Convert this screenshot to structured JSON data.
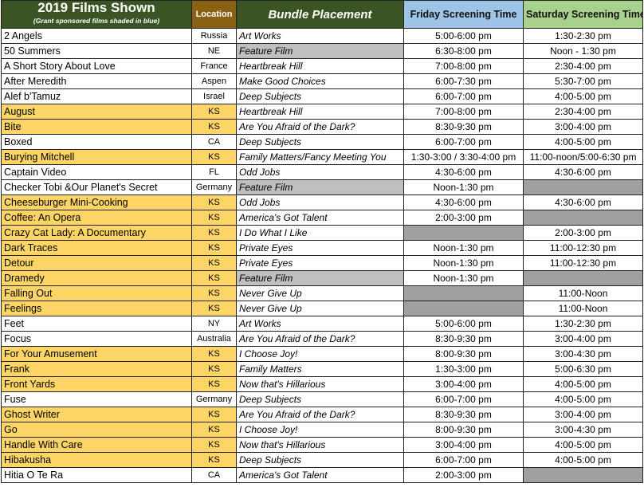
{
  "header": {
    "title": "2019 Films Shown",
    "subtitle": "(Grant sponsored films shaded in blue)",
    "location": "Location",
    "bundle": "Bundle Placement",
    "friday": "Friday Screening Time",
    "saturday": "Saturday Screening Time"
  },
  "colors": {
    "header_green": "#3b5424",
    "location_brown": "#8a6012",
    "friday_blue": "#9dc3e6",
    "saturday_green": "#a9d18e",
    "highlight_yellow": "#fdd567",
    "gray": "#a0a0a0"
  },
  "rows": [
    {
      "title": "2 Angels",
      "location": "Russia",
      "bundle": "Art Works",
      "friday": "5:00-6:00 pm",
      "saturday": "1:30-2:30 pm"
    },
    {
      "title": "50 Summers",
      "location": "NE",
      "bundle": "Feature Film",
      "friday": "6:30-8:00 pm",
      "saturday": "Noon - 1:30 pm",
      "bundle_gray": true
    },
    {
      "title": "A Short Story About Love",
      "location": "France",
      "bundle": "Heartbreak Hill",
      "friday": "7:00-8:00 pm",
      "saturday": "2:30-4:00 pm"
    },
    {
      "title": "After Meredith",
      "location": "Aspen",
      "bundle": "Make Good Choices",
      "friday": "6:00-7:30 pm",
      "saturday": "5:30-7:00 pm"
    },
    {
      "title": "Alef b'Tamuz",
      "location": "Israel",
      "bundle": "Deep Subjects",
      "friday": "6:00-7:00 pm",
      "saturday": "4:00-5:00 pm"
    },
    {
      "title": "August",
      "location": "KS",
      "bundle": "Heartbreak Hill",
      "friday": "7:00-8:00 pm",
      "saturday": "2:30-4:00 pm",
      "highlight": true
    },
    {
      "title": "Bite",
      "location": "KS",
      "bundle": "Are You Afraid of the Dark?",
      "friday": "8:30-9:30 pm",
      "saturday": "3:00-4:00 pm",
      "highlight": true
    },
    {
      "title": "Boxed",
      "location": "CA",
      "bundle": "Deep Subjects",
      "friday": "6:00-7:00 pm",
      "saturday": "4:00-5:00 pm"
    },
    {
      "title": "Burying Mitchell",
      "location": "KS",
      "bundle": "Family Matters/Fancy Meeting You",
      "friday": "1:30-3:00 / 3:30-4:00 pm",
      "saturday": "11:00-noon/5:00-6:30 pm",
      "highlight": true
    },
    {
      "title": "Captain Video",
      "location": "FL",
      "bundle": "Odd Jobs",
      "friday": "4:30-6:00 pm",
      "saturday": "4:30-6:00 pm"
    },
    {
      "title": "Checker Tobi &Our Planet's Secret",
      "location": "Germany",
      "bundle": "Feature Film",
      "friday": "Noon-1:30 pm",
      "saturday": "",
      "bundle_gray": true,
      "sat_gray": true
    },
    {
      "title": "Cheeseburger Mini-Cooking",
      "location": "KS",
      "bundle": "Odd Jobs",
      "friday": "4:30-6:00 pm",
      "saturday": "4:30-6:00 pm",
      "highlight": true
    },
    {
      "title": "Coffee: An Opera",
      "location": "KS",
      "bundle": "America's Got Talent",
      "friday": "2:00-3:00 pm",
      "saturday": "",
      "highlight": true,
      "sat_gray": true
    },
    {
      "title": "Crazy Cat Lady: A Documentary",
      "location": "KS",
      "bundle": "I Do What I Like",
      "friday": "",
      "saturday": "2:00-3:00 pm",
      "highlight": true,
      "fri_gray": true
    },
    {
      "title": "Dark Traces",
      "location": "KS",
      "bundle": "Private Eyes",
      "friday": "Noon-1:30 pm",
      "saturday": "11:00-12:30 pm",
      "highlight": true
    },
    {
      "title": "Detour",
      "location": "KS",
      "bundle": "Private Eyes",
      "friday": "Noon-1:30 pm",
      "saturday": "11:00-12:30 pm",
      "highlight": true
    },
    {
      "title": "Dramedy",
      "location": "KS",
      "bundle": "Feature Film",
      "friday": "Noon-1:30 pm",
      "saturday": "",
      "highlight": true,
      "bundle_gray": true,
      "sat_gray": true
    },
    {
      "title": "Falling Out",
      "location": "KS",
      "bundle": "Never Give Up",
      "friday": "",
      "saturday": "11:00-Noon",
      "highlight": true,
      "fri_gray": true
    },
    {
      "title": "Feelings",
      "location": "KS",
      "bundle": "Never Give Up",
      "friday": "",
      "saturday": "11:00-Noon",
      "highlight": true,
      "fri_gray": true
    },
    {
      "title": "Feet",
      "location": "NY",
      "bundle": "Art Works",
      "friday": "5:00-6:00 pm",
      "saturday": "1:30-2:30 pm"
    },
    {
      "title": "Focus",
      "location": "Australia",
      "bundle": "Are You Afraid of the Dark?",
      "friday": "8:30-9:30 pm",
      "saturday": "3:00-4:00 pm"
    },
    {
      "title": "For Your Amusement",
      "location": "KS",
      "bundle": "I Choose Joy!",
      "friday": "8:00-9:30 pm",
      "saturday": "3:00-4:30 pm",
      "highlight": true
    },
    {
      "title": "Frank",
      "location": "KS",
      "bundle": "Family Matters",
      "friday": "1:30-3:00 pm",
      "saturday": "5:00-6:30 pm",
      "highlight": true
    },
    {
      "title": "Front Yards",
      "location": "KS",
      "bundle": "Now that's Hillarious",
      "friday": "3:00-4:00 pm",
      "saturday": "4:00-5:00 pm",
      "highlight": true
    },
    {
      "title": "Fuse",
      "location": "Germany",
      "bundle": "Deep Subjects",
      "friday": "6:00-7:00 pm",
      "saturday": "4:00-5:00 pm"
    },
    {
      "title": "Ghost Writer",
      "location": "KS",
      "bundle": "Are You Afraid of the Dark?",
      "friday": "8:30-9:30 pm",
      "saturday": "3:00-4:00 pm",
      "highlight": true
    },
    {
      "title": "Go",
      "location": "KS",
      "bundle": "I Choose Joy!",
      "friday": "8:00-9:30 pm",
      "saturday": "3:00-4:30 pm",
      "highlight": true
    },
    {
      "title": "Handle With Care",
      "location": "KS",
      "bundle": "Now that's Hillarious",
      "friday": "3:00-4:00 pm",
      "saturday": "4:00-5:00 pm",
      "highlight": true
    },
    {
      "title": "Hibakusha",
      "location": "KS",
      "bundle": "Deep Subjects",
      "friday": "6:00-7:00 pm",
      "saturday": "4:00-5:00 pm",
      "highlight": true
    },
    {
      "title": "Hitia O Te Ra",
      "location": "CA",
      "bundle": "America's Got Talent",
      "friday": "2:00-3:00 pm",
      "saturday": "",
      "sat_gray": true
    }
  ]
}
